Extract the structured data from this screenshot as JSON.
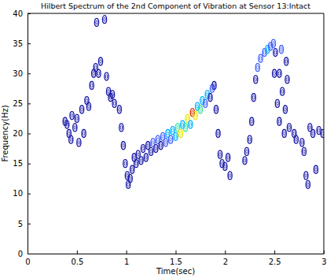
{
  "chart_data": {
    "type": "scatter",
    "title": "Hilbert Spectrum of the 2nd Component of Vibration at Sensor 13:Intact",
    "x_label": "Time(sec)",
    "y_label": "Frequency(Hz)",
    "xlim": [
      0,
      3
    ],
    "ylim": [
      0,
      40
    ],
    "xticks": [
      0,
      0.5,
      1,
      1.5,
      2,
      2.5,
      3
    ],
    "yticks": [
      0,
      5,
      10,
      15,
      20,
      25,
      30,
      35,
      40
    ],
    "marker": "ellipse",
    "series": [
      {
        "color": "#1a1aa8",
        "x": [
          0.38,
          0.4,
          0.42,
          0.44,
          0.45,
          0.48,
          0.5,
          0.52,
          0.55,
          0.57,
          0.6,
          0.62,
          0.65,
          0.67,
          0.69,
          0.7,
          0.72,
          0.74,
          0.78,
          0.8,
          0.82,
          0.84,
          0.86,
          0.88,
          0.93,
          0.95,
          0.97,
          0.99,
          1.01,
          1.02,
          1.04,
          1.06,
          1.08,
          1.1,
          1.12,
          1.15,
          1.17,
          1.2,
          1.22,
          1.25,
          1.27,
          1.3,
          1.32,
          1.35,
          1.37,
          1.4,
          1.42,
          1.45,
          1.47,
          1.5,
          1.52,
          1.55,
          1.57,
          1.6,
          1.62,
          1.65,
          1.67,
          1.7,
          1.72,
          1.75,
          1.77,
          1.8,
          1.82,
          1.85,
          1.87,
          1.89,
          1.91,
          1.93,
          1.95,
          1.97,
          2.0,
          2.03,
          2.05,
          2.2,
          2.22,
          2.25,
          2.27,
          2.29,
          2.31,
          2.33,
          2.36,
          2.4,
          2.43,
          2.46,
          2.49,
          2.51,
          2.5,
          2.53,
          2.55,
          2.55,
          2.57,
          2.58,
          2.6,
          2.61,
          2.62,
          2.63,
          2.65,
          2.7,
          2.72,
          2.78,
          2.8,
          2.82,
          2.84,
          2.86,
          2.89,
          2.92,
          2.95,
          2.99
        ],
        "values": [
          22,
          21.5,
          20,
          19,
          23,
          21,
          22.5,
          18.5,
          24,
          20,
          25.5,
          24.5,
          28,
          30,
          31,
          38.5,
          30,
          32,
          39,
          29.5,
          27,
          26,
          26.5,
          25,
          24,
          21,
          18,
          15,
          13,
          11.5,
          12.5,
          14,
          16,
          15,
          16.5,
          15.5,
          17.5,
          16,
          18,
          17,
          18.5,
          17.5,
          19,
          18,
          19.5,
          18.5,
          20,
          19,
          20.5,
          19.5,
          21,
          20,
          21.5,
          21,
          22.5,
          21.5,
          23.5,
          23,
          24.5,
          24,
          25.5,
          25,
          26.5,
          26,
          27.5,
          28,
          24,
          20,
          16.5,
          15,
          14.5,
          16,
          13,
          15.5,
          17,
          19,
          22,
          26,
          29,
          31,
          32.5,
          33.5,
          34,
          34.5,
          35,
          33.5,
          30,
          25,
          22,
          30,
          34,
          27,
          20,
          24,
          32,
          29,
          21,
          20,
          19,
          18.5,
          17,
          13,
          11.5,
          21,
          20,
          14,
          20.5,
          20
        ],
        "colors": [
          "#1a1aa8",
          "#1a1aa8",
          "#1a1aa8",
          "#1a1aa8",
          "#1a1aa8",
          "#1a1aa8",
          "#1a1aa8",
          "#1a1aa8",
          "#1a1aa8",
          "#1a1aa8",
          "#1a1aa8",
          "#1a1aa8",
          "#1a1aa8",
          "#1a1aa8",
          "#1a1aa8",
          "#1a1aa8",
          "#1a1aa8",
          "#1a1aa8",
          "#1a1aa8",
          "#1a1aa8",
          "#1a1aa8",
          "#1a1aa8",
          "#1a1aa8",
          "#1a1aa8",
          "#1a1aa8",
          "#1a1aa8",
          "#1a1aa8",
          "#1a1aa8",
          "#1a1aa8",
          "#1a1aa8",
          "#1a1aa8",
          "#1a1aa8",
          "#1a1aa8",
          "#1a1aa8",
          "#1a1aa8",
          "#1a1aa8",
          "#1a1aa8",
          "#1a1aa8",
          "#1a1aa8",
          "#1a1aa8",
          "#4060ff",
          "#1a1aa8",
          "#4060ff",
          "#1a1aa8",
          "#4060ff",
          "#4060ff",
          "#00b4ff",
          "#4060ff",
          "#00b4ff",
          "#00b4ff",
          "#40e0a0",
          "#e8e800",
          "#00b4ff",
          "#40e0a0",
          "#e8e800",
          "#00b4ff",
          "#e03000",
          "#e8e800",
          "#00b4ff",
          "#40e0a0",
          "#00b4ff",
          "#4060ff",
          "#00b4ff",
          "#1a1aa8",
          "#4060ff",
          "#1a1aa8",
          "#1a1aa8",
          "#1a1aa8",
          "#1a1aa8",
          "#1a1aa8",
          "#1a1aa8",
          "#1a1aa8",
          "#1a1aa8",
          "#1a1aa8",
          "#1a1aa8",
          "#1a1aa8",
          "#1a1aa8",
          "#1a1aa8",
          "#1a1aa8",
          "#4060ff",
          "#4060ff",
          "#4060ff",
          "#00b4ff",
          "#4060ff",
          "#4060ff",
          "#1a1aa8",
          "#1a1aa8",
          "#1a1aa8",
          "#1a1aa8",
          "#1a1aa8",
          "#4060ff",
          "#1a1aa8",
          "#1a1aa8",
          "#1a1aa8",
          "#1a1aa8",
          "#1a1aa8",
          "#1a1aa8",
          "#1a1aa8",
          "#1a1aa8",
          "#1a1aa8",
          "#1a1aa8",
          "#1a1aa8",
          "#1a1aa8",
          "#1a1aa8",
          "#1a1aa8",
          "#1a1aa8",
          "#1a1aa8",
          "#1a1aa8"
        ]
      }
    ]
  }
}
